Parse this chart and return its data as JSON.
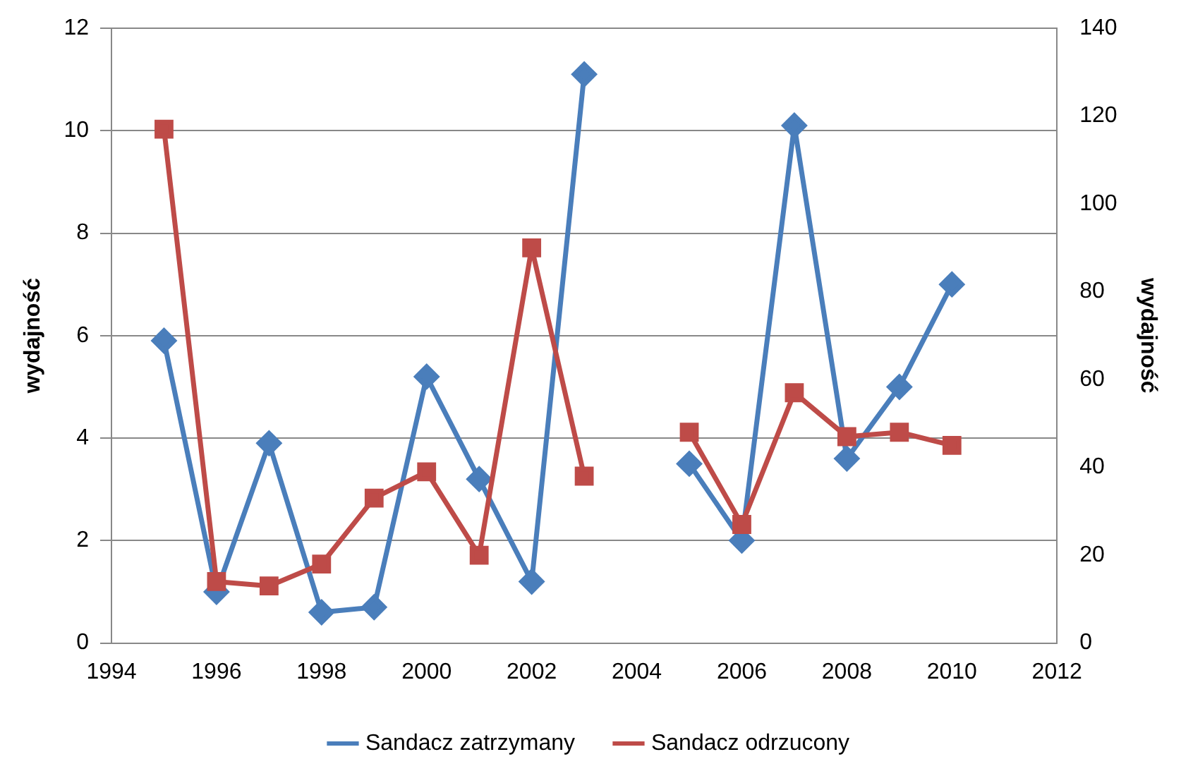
{
  "chart_data": {
    "type": "line",
    "x": [
      1995,
      1996,
      1997,
      1998,
      1999,
      2000,
      2001,
      2002,
      2003,
      2004,
      2005,
      2006,
      2007,
      2008,
      2009,
      2010
    ],
    "series": [
      {
        "name": "Sandacz zatrzymany",
        "color": "#4a7ebb",
        "marker": "diamond",
        "values": [
          5.9,
          1.0,
          3.9,
          0.6,
          0.7,
          5.2,
          3.2,
          1.2,
          11.1,
          null,
          3.5,
          2.0,
          10.1,
          3.6,
          5.0,
          7.0
        ]
      },
      {
        "name": "Sandacz odrzucony",
        "color": "#be4b48",
        "marker": "square",
        "axis": "y2",
        "values": [
          117,
          14,
          13,
          18,
          33,
          39,
          20,
          90,
          38,
          null,
          48,
          27,
          57,
          47,
          48,
          45
        ]
      }
    ],
    "xlim": [
      1994,
      2012
    ],
    "xticks": [
      1994,
      1996,
      1998,
      2000,
      2002,
      2004,
      2006,
      2008,
      2010,
      2012
    ],
    "ylim": [
      0,
      12
    ],
    "yticks": [
      0,
      2,
      4,
      6,
      8,
      10,
      12
    ],
    "y2lim": [
      0,
      140
    ],
    "y2ticks": [
      0,
      20,
      40,
      60,
      80,
      100,
      120,
      140
    ],
    "ylabel": "wydajność",
    "y2label": "wydajność",
    "grid": "y",
    "legend": "bottom",
    "line_style": "solid"
  }
}
